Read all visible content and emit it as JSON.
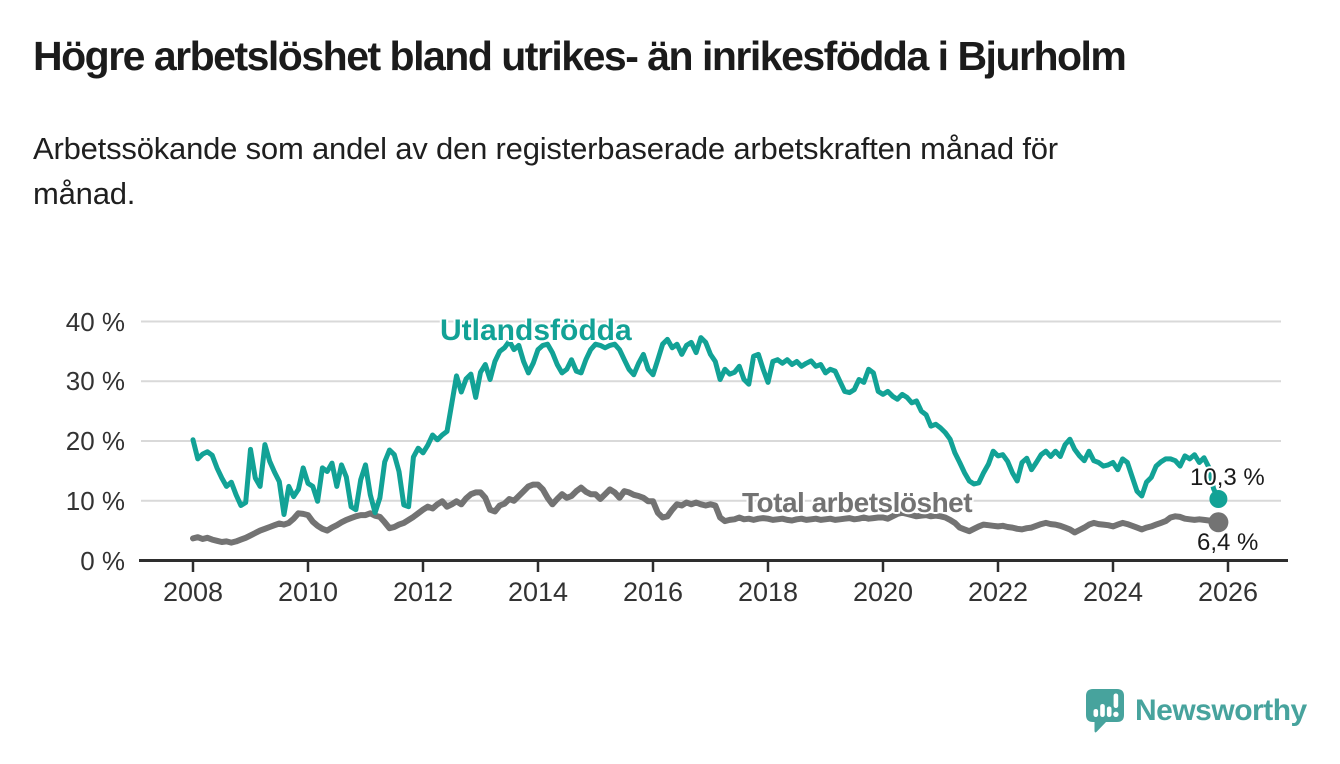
{
  "header": {
    "title": "Högre arbetslöshet bland utrikes- än inrikesfödda i Bjurholm",
    "subtitle": "Arbetssökande som andel av den registerbaserade arbetskraften månad för månad."
  },
  "chart_data": {
    "type": "line",
    "title": "Högre arbetslöshet bland utrikes- än inrikesfödda i Bjurholm",
    "xlabel": "",
    "ylabel": "Arbetssökande som andel av den registerbaserade arbetskraften",
    "x_monthly_start": "2008-01",
    "x_monthly_end": "2025-11",
    "x_ticks": [
      "2008",
      "2010",
      "2012",
      "2014",
      "2016",
      "2018",
      "2020",
      "2022",
      "2024",
      "2026"
    ],
    "y_ticks": [
      "0 %",
      "10 %",
      "20 %",
      "30 %",
      "40 %"
    ],
    "ylim": [
      0,
      42
    ],
    "grid": "horizontal",
    "legend_position": "inline-labels",
    "colors": {
      "accent_teal": "#12A296",
      "neutral_gray": "#737373",
      "gridline": "#d9d9d9",
      "axis": "#2e2e2e"
    },
    "series": [
      {
        "name": "Utlandsfödda",
        "color": "#12A296",
        "end_label": "10,3 %",
        "end_value": 10.3,
        "values": [
          20.2,
          17.0,
          17.8,
          18.2,
          17.6,
          15.5,
          13.8,
          12.4,
          13.1,
          11.0,
          9.2,
          9.7,
          18.6,
          13.8,
          12.4,
          19.4,
          16.6,
          14.8,
          13.2,
          7.7,
          12.4,
          10.7,
          11.9,
          15.5,
          12.9,
          12.4,
          9.9,
          15.5,
          14.9,
          16.3,
          12.4,
          16.0,
          14.0,
          9.0,
          8.5,
          13.5,
          16.0,
          11.0,
          8.0,
          10.5,
          16.5,
          18.5,
          17.7,
          14.9,
          9.3,
          9.0,
          17.3,
          18.8,
          18.0,
          19.3,
          21.0,
          20.2,
          21.0,
          21.6,
          26.3,
          30.9,
          28.2,
          30.4,
          31.2,
          27.3,
          31.5,
          32.8,
          30.3,
          33.3,
          35.0,
          35.6,
          36.7,
          35.3,
          36.0,
          33.3,
          31.4,
          33.0,
          35.3,
          36.0,
          36.2,
          34.8,
          32.8,
          31.4,
          32.0,
          33.6,
          31.7,
          31.4,
          33.6,
          35.3,
          36.2,
          36.0,
          35.6,
          36.0,
          36.2,
          35.3,
          33.6,
          32.0,
          31.1,
          33.0,
          34.5,
          32.0,
          31.1,
          33.6,
          36.2,
          37.0,
          35.6,
          36.2,
          34.5,
          36.0,
          36.5,
          34.8,
          37.3,
          36.5,
          34.5,
          33.3,
          30.3,
          32.0,
          31.2,
          31.5,
          32.5,
          30.3,
          29.5,
          34.2,
          34.5,
          32.0,
          29.8,
          33.3,
          33.6,
          33.0,
          33.6,
          32.8,
          33.3,
          32.5,
          33.0,
          33.4,
          32.5,
          32.8,
          31.4,
          32.0,
          31.7,
          30.0,
          28.3,
          28.1,
          28.6,
          30.3,
          29.8,
          32.0,
          31.4,
          28.3,
          27.8,
          28.3,
          27.5,
          27.0,
          27.8,
          27.3,
          26.4,
          26.7,
          25.0,
          24.4,
          22.5,
          22.8,
          22.2,
          21.4,
          20.3,
          18.0,
          16.4,
          14.7,
          13.3,
          12.8,
          13.0,
          14.7,
          16.1,
          18.3,
          17.5,
          17.7,
          16.6,
          14.7,
          13.3,
          16.4,
          17.1,
          15.2,
          16.4,
          17.7,
          18.3,
          17.4,
          18.3,
          17.4,
          19.4,
          20.3,
          18.6,
          17.5,
          16.7,
          18.3,
          16.7,
          16.4,
          15.8,
          16.0,
          16.4,
          15.2,
          17.0,
          16.4,
          14.0,
          11.6,
          10.8,
          13.1,
          13.9,
          15.8,
          16.5,
          17.0,
          17.0,
          16.7,
          15.8,
          17.5,
          17.0,
          17.7,
          16.4,
          17.2,
          15.6,
          12.0,
          10.3
        ]
      },
      {
        "name": "Total arbetslöshet",
        "color": "#737373",
        "end_label": "6,4 %",
        "end_value": 6.4,
        "values": [
          3.7,
          3.9,
          3.6,
          3.8,
          3.5,
          3.3,
          3.1,
          3.2,
          3.0,
          3.2,
          3.5,
          3.8,
          4.2,
          4.6,
          5.0,
          5.3,
          5.6,
          5.9,
          6.2,
          6.0,
          6.3,
          7.0,
          7.9,
          7.8,
          7.6,
          6.5,
          5.8,
          5.3,
          5.0,
          5.5,
          5.9,
          6.4,
          6.8,
          7.1,
          7.4,
          7.6,
          7.6,
          7.9,
          7.5,
          7.3,
          6.4,
          5.4,
          5.6,
          6.0,
          6.3,
          6.8,
          7.3,
          7.9,
          8.5,
          9.0,
          8.7,
          9.4,
          9.9,
          9.0,
          9.4,
          9.9,
          9.4,
          10.4,
          11.1,
          11.4,
          11.4,
          10.5,
          8.5,
          8.2,
          9.2,
          9.5,
          10.3,
          10.0,
          10.8,
          11.6,
          12.4,
          12.7,
          12.7,
          11.9,
          10.5,
          9.4,
          10.3,
          11.1,
          10.5,
          10.8,
          11.6,
          12.2,
          11.5,
          11.1,
          11.1,
          10.3,
          11.1,
          11.9,
          11.4,
          10.5,
          11.6,
          11.4,
          11.0,
          10.8,
          10.5,
          9.9,
          9.9,
          8.0,
          7.2,
          7.4,
          8.5,
          9.4,
          9.2,
          9.7,
          9.4,
          9.7,
          9.4,
          9.2,
          9.4,
          9.2,
          7.2,
          6.6,
          6.8,
          6.9,
          7.2,
          6.9,
          7.0,
          6.8,
          7.0,
          7.1,
          7.0,
          6.8,
          6.9,
          7.0,
          6.8,
          6.7,
          6.9,
          7.0,
          6.8,
          6.9,
          7.0,
          6.8,
          6.9,
          7.0,
          6.8,
          6.9,
          7.0,
          7.1,
          6.9,
          7.0,
          7.2,
          7.0,
          7.1,
          7.2,
          7.2,
          7.0,
          7.4,
          7.8,
          8.0,
          7.8,
          7.6,
          7.4,
          7.5,
          7.6,
          7.4,
          7.5,
          7.4,
          7.2,
          6.8,
          6.3,
          5.5,
          5.2,
          4.9,
          5.3,
          5.7,
          6.0,
          5.9,
          5.8,
          5.7,
          5.8,
          5.6,
          5.5,
          5.3,
          5.2,
          5.4,
          5.5,
          5.8,
          6.1,
          6.3,
          6.1,
          6.0,
          5.8,
          5.5,
          5.2,
          4.7,
          5.1,
          5.5,
          6.0,
          6.3,
          6.1,
          6.0,
          5.9,
          5.7,
          6.0,
          6.3,
          6.1,
          5.8,
          5.5,
          5.2,
          5.5,
          5.7,
          6.0,
          6.3,
          6.6,
          7.2,
          7.4,
          7.3,
          7.0,
          6.9,
          6.8,
          6.9,
          6.8,
          6.7,
          6.6,
          6.4
        ]
      }
    ]
  },
  "branding": {
    "logo_text": "Newsworthy",
    "logo_color": "#47A39D",
    "logo_icon": "bar-chart-speech-bubble-icon"
  }
}
